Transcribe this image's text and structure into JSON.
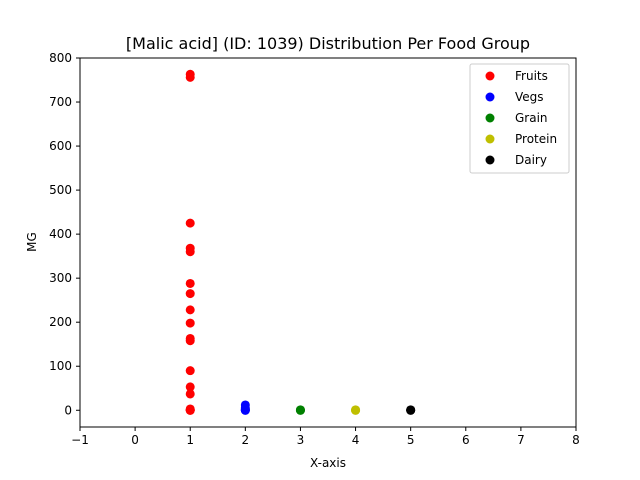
{
  "chart_data": {
    "type": "scatter",
    "title": "[Malic acid] (ID: 1039) Distribution Per Food Group",
    "xlabel": "X-axis",
    "ylabel": "MG",
    "xlim": [
      -1,
      8
    ],
    "ylim": [
      -38,
      800
    ],
    "xticks": [
      -1,
      0,
      1,
      2,
      3,
      4,
      5,
      6,
      7,
      8
    ],
    "xtick_labels": [
      "−1",
      "0",
      "1",
      "2",
      "3",
      "4",
      "5",
      "6",
      "7",
      "8"
    ],
    "yticks": [
      0,
      100,
      200,
      300,
      400,
      500,
      600,
      700,
      800
    ],
    "ytick_labels": [
      "0",
      "100",
      "200",
      "300",
      "400",
      "500",
      "600",
      "700",
      "800"
    ],
    "grid": false,
    "legend_position": "top-right",
    "series": [
      {
        "name": "Fruits",
        "color": "#ff0000",
        "points": [
          [
            1,
            763
          ],
          [
            1,
            756
          ],
          [
            1,
            425
          ],
          [
            1,
            368
          ],
          [
            1,
            360
          ],
          [
            1,
            288
          ],
          [
            1,
            265
          ],
          [
            1,
            228
          ],
          [
            1,
            198
          ],
          [
            1,
            163
          ],
          [
            1,
            158
          ],
          [
            1,
            90
          ],
          [
            1,
            53
          ],
          [
            1,
            37
          ],
          [
            1,
            3
          ],
          [
            1,
            1
          ],
          [
            1,
            0
          ],
          [
            1,
            0
          ],
          [
            1,
            0
          ]
        ]
      },
      {
        "name": "Vegs",
        "color": "#0000ff",
        "points": [
          [
            2,
            12
          ],
          [
            2,
            5
          ],
          [
            2,
            2
          ],
          [
            2,
            1
          ],
          [
            2,
            0
          ],
          [
            2,
            0
          ]
        ]
      },
      {
        "name": "Grain",
        "color": "#008000",
        "points": [
          [
            3,
            1
          ],
          [
            3,
            0
          ],
          [
            3,
            0
          ]
        ]
      },
      {
        "name": "Protein",
        "color": "#bfbf00",
        "points": [
          [
            4,
            1
          ],
          [
            4,
            0
          ],
          [
            4,
            0
          ]
        ]
      },
      {
        "name": "Dairy",
        "color": "#000000",
        "points": [
          [
            5,
            1
          ],
          [
            5,
            0
          ],
          [
            5,
            0
          ]
        ]
      }
    ]
  }
}
